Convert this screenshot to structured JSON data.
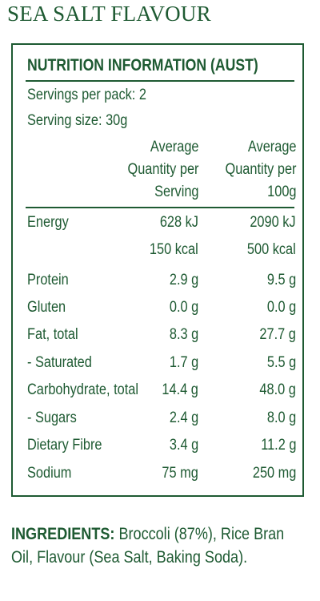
{
  "title": "SEA SALT FLAVOUR",
  "nutrition": {
    "heading": "NUTRITION INFORMATION (AUST)",
    "servings_per_pack": "Servings per pack:  2",
    "serving_size": "Serving size:  30g",
    "col_headers": {
      "per_serving": [
        "Average",
        "Quantity per",
        "Serving"
      ],
      "per_100g": [
        "Average",
        "Quantity per",
        "100g"
      ]
    },
    "rows": [
      {
        "label": "Energy",
        "per_serving": "628 kJ",
        "per_100g": "2090 kJ"
      },
      {
        "label": "",
        "per_serving": "150 kcal",
        "per_100g": "500 kcal"
      },
      {
        "label": "Protein",
        "per_serving": "2.9 g",
        "per_100g": "9.5 g"
      },
      {
        "label": "Gluten",
        "per_serving": "0.0 g",
        "per_100g": "0.0 g"
      },
      {
        "label": "Fat, total",
        "per_serving": "8.3 g",
        "per_100g": "27.7 g"
      },
      {
        "label": " - Saturated",
        "per_serving": "1.7 g",
        "per_100g": "5.5 g"
      },
      {
        "label": "Carbohydrate, total",
        "per_serving": "14.4 g",
        "per_100g": "48.0 g"
      },
      {
        "label": " - Sugars",
        "per_serving": "2.4 g",
        "per_100g": "8.0 g"
      },
      {
        "label": "Dietary Fibre",
        "per_serving": "3.4 g",
        "per_100g": "11.2 g"
      },
      {
        "label": "Sodium",
        "per_serving": "75 mg",
        "per_100g": "250 mg"
      }
    ]
  },
  "ingredients": {
    "label": "INGREDIENTS:",
    "text": "Broccoli (87%), Rice Bran Oil, Flavour (Sea Salt, Baking Soda)."
  },
  "colors": {
    "brand_green": "#1e5a32",
    "background": "#ffffff"
  }
}
